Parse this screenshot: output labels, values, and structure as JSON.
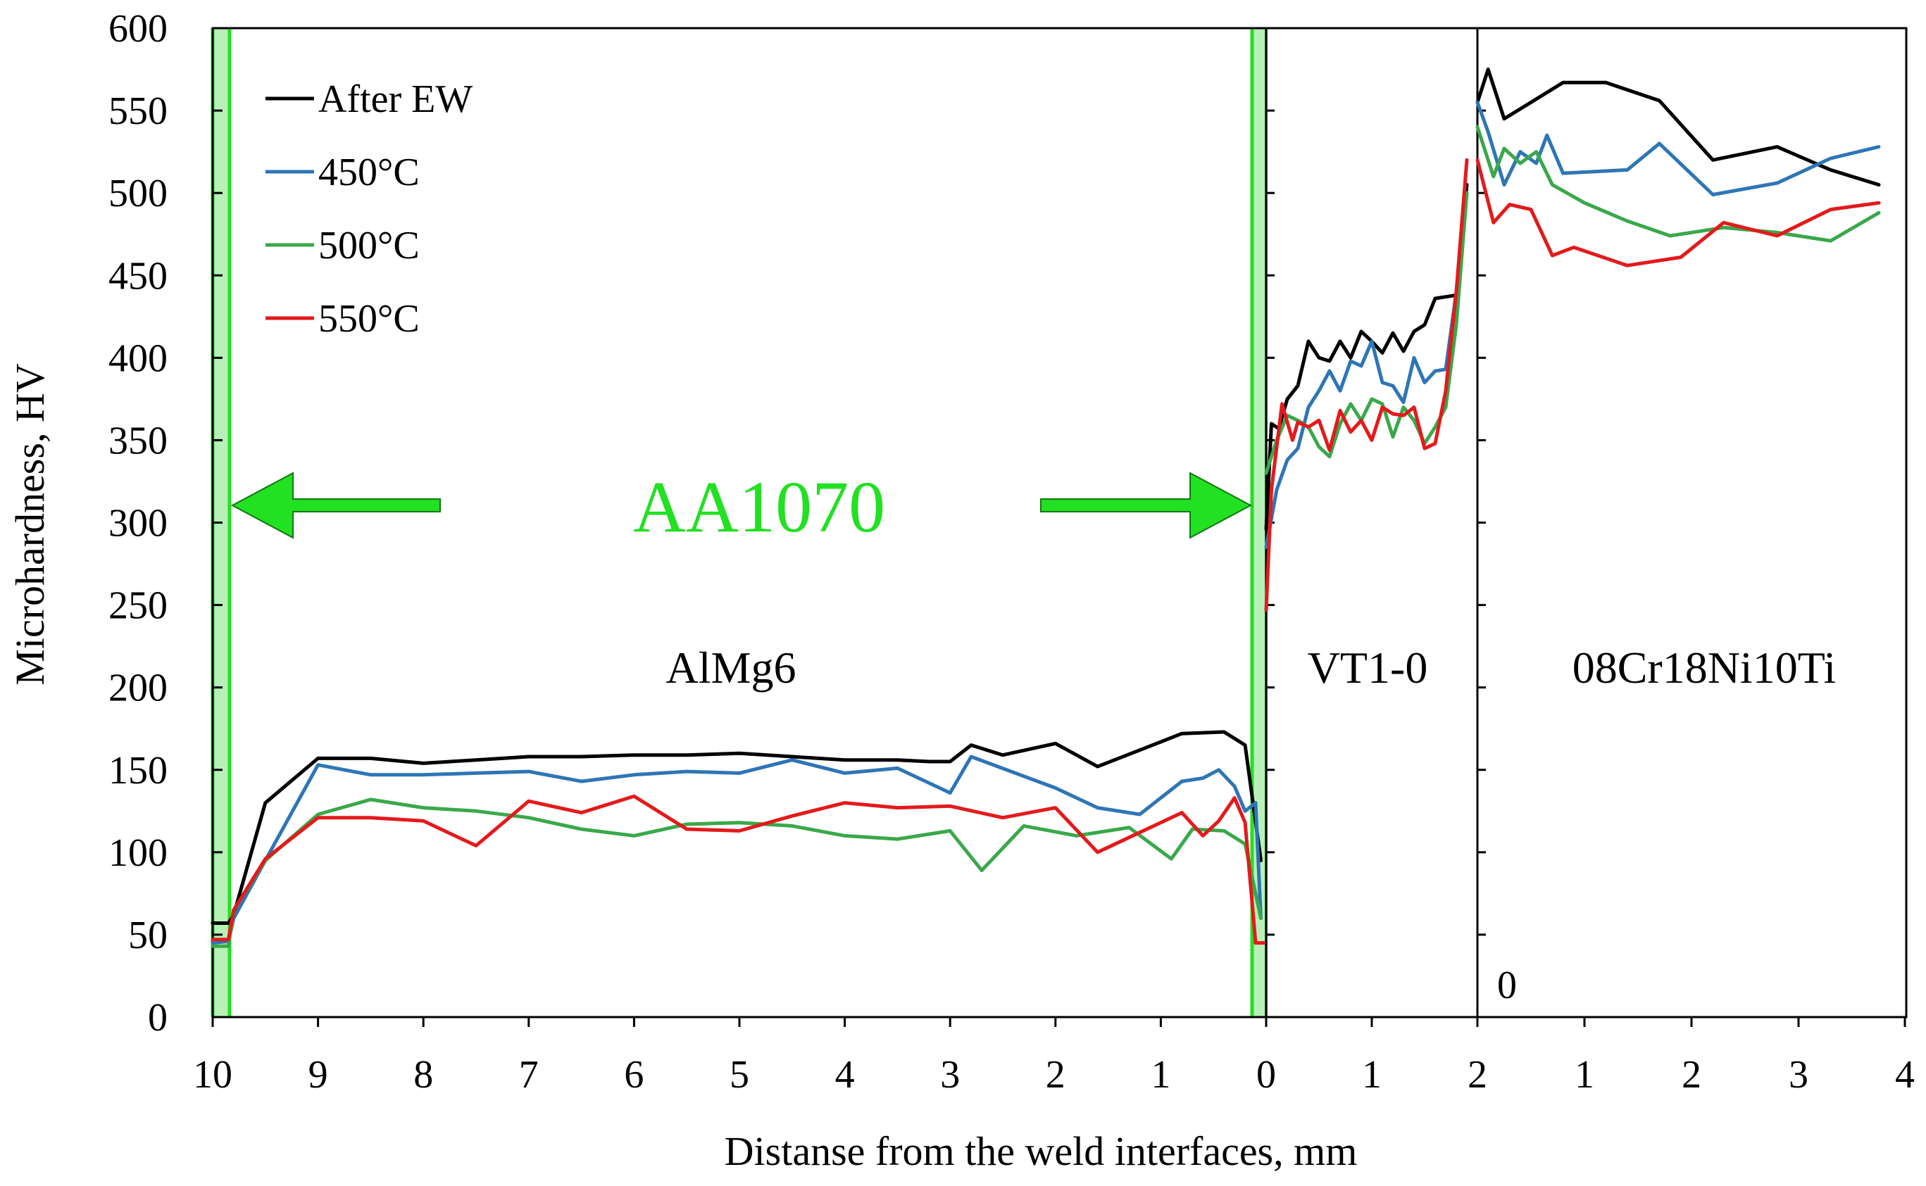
{
  "chart_data": {
    "type": "line",
    "title": "",
    "xlabel": "Distanse from the weld interfaces, mm",
    "ylabel": "Microhardness, HV",
    "ylim": [
      0,
      600
    ],
    "y_ticks": [
      "0",
      "50",
      "100",
      "150",
      "200",
      "250",
      "300",
      "350",
      "400",
      "450",
      "500",
      "550",
      "600"
    ],
    "x_ticks": [
      "10",
      "9",
      "8",
      "7",
      "6",
      "5",
      "4",
      "3",
      "2",
      "1",
      "0",
      "1",
      "2",
      "1",
      "2",
      "3",
      "4"
    ],
    "inner_zero_label": "0",
    "legend_position": "top-left",
    "region_labels": {
      "almg6": "AlMg6",
      "vt1": "VT1-0",
      "steel": "08Cr18Ni10Ti",
      "interlayer": "AA1070"
    },
    "segments": {
      "almg6": {
        "x_range_mm": [
          10,
          0
        ],
        "direction": "reversed"
      },
      "vt1": {
        "x_range_mm": [
          0,
          2
        ]
      },
      "steel": {
        "x_range_mm": [
          0,
          4
        ]
      }
    },
    "colors": {
      "after_ew": "#000000",
      "t450": "#2e75b6",
      "t500": "#3aa84a",
      "t550": "#e31a1c",
      "interlayer": "#22e022",
      "interlayer_fill": "#b9efb9"
    },
    "series": [
      {
        "name": "After EW",
        "color_key": "after_ew",
        "almg6": [
          [
            10,
            57
          ],
          [
            9.85,
            57
          ],
          [
            9.8,
            62
          ],
          [
            9.5,
            130
          ],
          [
            9,
            157
          ],
          [
            8.5,
            157
          ],
          [
            8,
            154
          ],
          [
            7.5,
            156
          ],
          [
            7,
            158
          ],
          [
            6.5,
            158
          ],
          [
            6,
            159
          ],
          [
            5.5,
            159
          ],
          [
            5,
            160
          ],
          [
            4.5,
            158
          ],
          [
            4,
            156
          ],
          [
            3.5,
            156
          ],
          [
            3.2,
            155
          ],
          [
            3,
            155
          ],
          [
            2.8,
            165
          ],
          [
            2.5,
            159
          ],
          [
            2,
            166
          ],
          [
            1.6,
            152
          ],
          [
            1.2,
            162
          ],
          [
            0.8,
            172
          ],
          [
            0.4,
            173
          ],
          [
            0.2,
            165
          ],
          [
            0.05,
            95
          ]
        ],
        "vt1": [
          [
            0,
            296
          ],
          [
            0.05,
            360
          ],
          [
            0.12,
            357
          ],
          [
            0.2,
            375
          ],
          [
            0.3,
            383
          ],
          [
            0.4,
            410
          ],
          [
            0.5,
            400
          ],
          [
            0.6,
            398
          ],
          [
            0.7,
            410
          ],
          [
            0.8,
            400
          ],
          [
            0.9,
            416
          ],
          [
            1.0,
            410
          ],
          [
            1.1,
            403
          ],
          [
            1.2,
            415
          ],
          [
            1.3,
            404
          ],
          [
            1.4,
            416
          ],
          [
            1.5,
            420
          ],
          [
            1.6,
            436
          ],
          [
            1.7,
            437
          ],
          [
            1.8,
            438
          ],
          [
            1.9,
            505
          ]
        ],
        "steel": [
          [
            0,
            555
          ],
          [
            0.1,
            575
          ],
          [
            0.25,
            545
          ],
          [
            0.8,
            567
          ],
          [
            1.2,
            567
          ],
          [
            1.7,
            556
          ],
          [
            2.2,
            520
          ],
          [
            2.8,
            528
          ],
          [
            3.3,
            514
          ],
          [
            3.75,
            505
          ]
        ]
      },
      {
        "name": "450°C",
        "color_key": "t450",
        "almg6": [
          [
            10,
            45
          ],
          [
            9.85,
            46
          ],
          [
            9.8,
            60
          ],
          [
            9.5,
            95
          ],
          [
            9,
            153
          ],
          [
            8.5,
            147
          ],
          [
            8,
            147
          ],
          [
            7.5,
            148
          ],
          [
            7,
            149
          ],
          [
            6.5,
            143
          ],
          [
            6,
            147
          ],
          [
            5.5,
            149
          ],
          [
            5,
            148
          ],
          [
            4.5,
            156
          ],
          [
            4,
            148
          ],
          [
            3.5,
            151
          ],
          [
            3,
            136
          ],
          [
            2.8,
            158
          ],
          [
            2,
            139
          ],
          [
            1.6,
            127
          ],
          [
            1.2,
            123
          ],
          [
            0.8,
            143
          ],
          [
            0.6,
            145
          ],
          [
            0.45,
            150
          ],
          [
            0.3,
            140
          ],
          [
            0.2,
            125
          ],
          [
            0.1,
            130
          ],
          [
            0.05,
            60
          ]
        ],
        "vt1": [
          [
            0,
            285
          ],
          [
            0.1,
            320
          ],
          [
            0.2,
            338
          ],
          [
            0.3,
            345
          ],
          [
            0.4,
            370
          ],
          [
            0.5,
            380
          ],
          [
            0.6,
            392
          ],
          [
            0.7,
            380
          ],
          [
            0.8,
            398
          ],
          [
            0.9,
            395
          ],
          [
            1.0,
            410
          ],
          [
            1.1,
            385
          ],
          [
            1.2,
            383
          ],
          [
            1.3,
            373
          ],
          [
            1.4,
            400
          ],
          [
            1.5,
            385
          ],
          [
            1.6,
            392
          ],
          [
            1.7,
            393
          ],
          [
            1.8,
            440
          ],
          [
            1.9,
            500
          ]
        ],
        "steel": [
          [
            0,
            555
          ],
          [
            0.1,
            537
          ],
          [
            0.25,
            505
          ],
          [
            0.4,
            525
          ],
          [
            0.55,
            518
          ],
          [
            0.65,
            535
          ],
          [
            0.8,
            512
          ],
          [
            1.4,
            514
          ],
          [
            1.7,
            530
          ],
          [
            2.2,
            499
          ],
          [
            2.8,
            506
          ],
          [
            3.3,
            521
          ],
          [
            3.75,
            528
          ]
        ]
      },
      {
        "name": "500°C",
        "color_key": "t500",
        "almg6": [
          [
            10,
            43
          ],
          [
            9.85,
            43
          ],
          [
            9.8,
            65
          ],
          [
            9.5,
            95
          ],
          [
            9,
            123
          ],
          [
            8.5,
            132
          ],
          [
            8,
            127
          ],
          [
            7.5,
            125
          ],
          [
            7,
            121
          ],
          [
            6.5,
            114
          ],
          [
            6,
            110
          ],
          [
            5.5,
            117
          ],
          [
            5,
            118
          ],
          [
            4.5,
            116
          ],
          [
            4,
            110
          ],
          [
            3.5,
            108
          ],
          [
            3,
            113
          ],
          [
            2.7,
            89
          ],
          [
            2.3,
            116
          ],
          [
            1.8,
            110
          ],
          [
            1.3,
            115
          ],
          [
            0.9,
            96
          ],
          [
            0.7,
            114
          ],
          [
            0.4,
            113
          ],
          [
            0.2,
            105
          ],
          [
            0.05,
            60
          ]
        ],
        "vt1": [
          [
            0,
            330
          ],
          [
            0.1,
            350
          ],
          [
            0.2,
            365
          ],
          [
            0.3,
            362
          ],
          [
            0.4,
            358
          ],
          [
            0.5,
            346
          ],
          [
            0.6,
            340
          ],
          [
            0.7,
            360
          ],
          [
            0.8,
            372
          ],
          [
            0.9,
            362
          ],
          [
            1.0,
            375
          ],
          [
            1.1,
            372
          ],
          [
            1.2,
            352
          ],
          [
            1.3,
            370
          ],
          [
            1.4,
            362
          ],
          [
            1.5,
            348
          ],
          [
            1.6,
            358
          ],
          [
            1.7,
            370
          ],
          [
            1.8,
            420
          ],
          [
            1.9,
            500
          ]
        ],
        "steel": [
          [
            0,
            540
          ],
          [
            0.15,
            510
          ],
          [
            0.25,
            527
          ],
          [
            0.4,
            518
          ],
          [
            0.55,
            525
          ],
          [
            0.7,
            505
          ],
          [
            1.0,
            494
          ],
          [
            1.4,
            483
          ],
          [
            1.8,
            474
          ],
          [
            2.3,
            479
          ],
          [
            2.8,
            476
          ],
          [
            3.3,
            471
          ],
          [
            3.75,
            488
          ]
        ]
      },
      {
        "name": "550°C",
        "color_key": "t550",
        "almg6": [
          [
            10,
            47
          ],
          [
            9.85,
            47
          ],
          [
            9.8,
            65
          ],
          [
            9.5,
            96
          ],
          [
            9,
            121
          ],
          [
            8.5,
            121
          ],
          [
            8,
            119
          ],
          [
            7.5,
            104
          ],
          [
            7,
            131
          ],
          [
            6.5,
            124
          ],
          [
            6,
            134
          ],
          [
            5.5,
            114
          ],
          [
            5,
            113
          ],
          [
            4.5,
            122
          ],
          [
            4,
            130
          ],
          [
            3.5,
            127
          ],
          [
            3,
            128
          ],
          [
            2.5,
            121
          ],
          [
            2,
            127
          ],
          [
            1.6,
            100
          ],
          [
            1.2,
            112
          ],
          [
            0.8,
            124
          ],
          [
            0.6,
            110
          ],
          [
            0.45,
            119
          ],
          [
            0.3,
            133
          ],
          [
            0.2,
            118
          ],
          [
            0.1,
            45
          ],
          [
            0.02,
            45
          ]
        ],
        "vt1": [
          [
            0,
            247
          ],
          [
            0.05,
            320
          ],
          [
            0.15,
            372
          ],
          [
            0.25,
            350
          ],
          [
            0.3,
            361
          ],
          [
            0.4,
            358
          ],
          [
            0.5,
            362
          ],
          [
            0.6,
            344
          ],
          [
            0.7,
            368
          ],
          [
            0.8,
            355
          ],
          [
            0.9,
            362
          ],
          [
            1.0,
            350
          ],
          [
            1.1,
            370
          ],
          [
            1.2,
            366
          ],
          [
            1.3,
            365
          ],
          [
            1.4,
            370
          ],
          [
            1.5,
            345
          ],
          [
            1.6,
            348
          ],
          [
            1.7,
            380
          ],
          [
            1.8,
            440
          ],
          [
            1.9,
            520
          ]
        ],
        "steel": [
          [
            0,
            520
          ],
          [
            0.15,
            482
          ],
          [
            0.3,
            493
          ],
          [
            0.5,
            490
          ],
          [
            0.7,
            462
          ],
          [
            0.9,
            467
          ],
          [
            1.4,
            456
          ],
          [
            1.9,
            461
          ],
          [
            2.3,
            482
          ],
          [
            2.8,
            474
          ],
          [
            3.3,
            490
          ],
          [
            3.75,
            494
          ]
        ]
      }
    ]
  }
}
